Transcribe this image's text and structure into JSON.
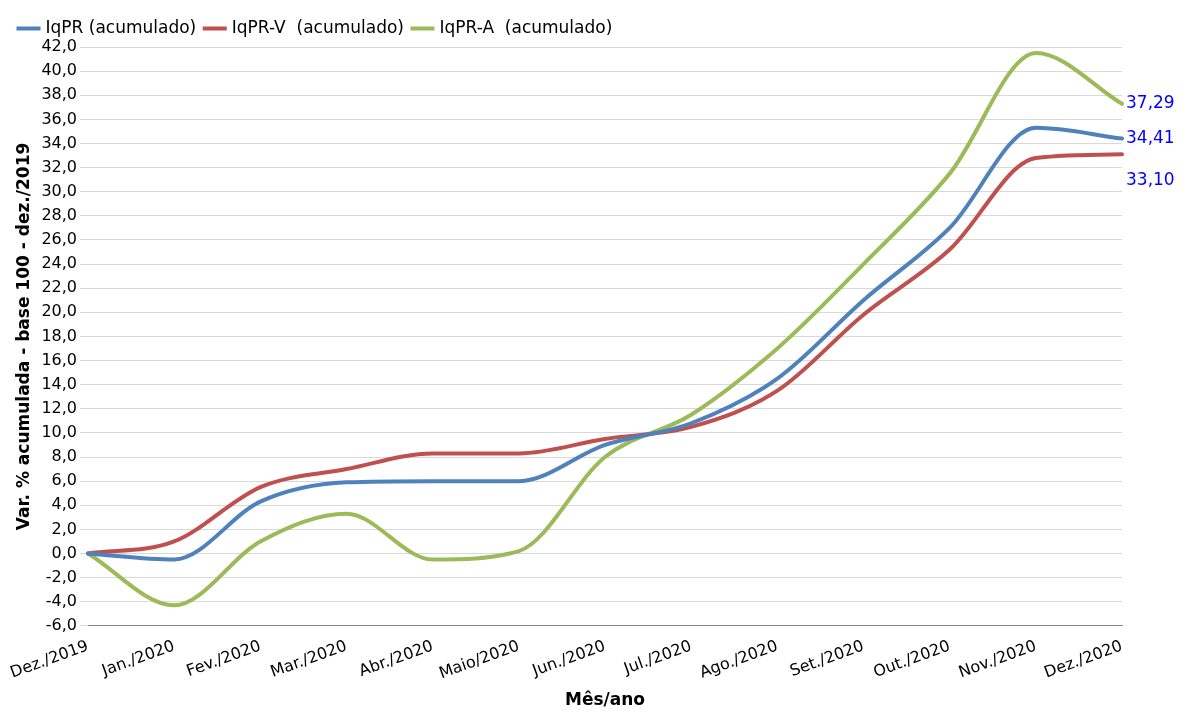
{
  "chart_data": {
    "type": "line",
    "xlabel": "Mês/ano",
    "ylabel": "Var. % acumulada - base 100 - dez./2019",
    "categories": [
      "Dez./2019",
      "Jan./2020",
      "Fev./2020",
      "Mar./2020",
      "Abr./2020",
      "Maio/2020",
      "Jun./2020",
      "Jul./2020",
      "Ago./2020",
      "Set./2020",
      "Out./2020",
      "Nov./2020",
      "Dez./2020"
    ],
    "series": [
      {
        "name": "IqPR (acumulado)",
        "color": "#4f81bd",
        "values": [
          0,
          -0.5,
          4.3,
          5.9,
          6.0,
          6.0,
          9.0,
          10.8,
          14.5,
          21.0,
          27.0,
          35.3,
          34.41
        ],
        "value_labels": [
          null,
          null,
          null,
          null,
          null,
          null,
          null,
          null,
          null,
          null,
          null,
          null,
          "34,41"
        ]
      },
      {
        "name": "IqPR-V  (acumulado)",
        "color": "#c0504d",
        "values": [
          0,
          1.0,
          5.5,
          7.0,
          8.3,
          8.3,
          9.5,
          10.5,
          13.5,
          19.8,
          25.2,
          32.8,
          33.1
        ],
        "value_labels": [
          null,
          null,
          null,
          null,
          null,
          null,
          null,
          null,
          null,
          null,
          null,
          null,
          "33,10"
        ]
      },
      {
        "name": "IqPR-A  (acumulado)",
        "color": "#9bbb59",
        "values": [
          0,
          -4.3,
          1.0,
          3.3,
          -0.5,
          0.2,
          8.0,
          11.5,
          17.0,
          24.0,
          31.5,
          41.5,
          37.29
        ],
        "value_labels": [
          null,
          null,
          null,
          null,
          null,
          null,
          null,
          null,
          null,
          null,
          null,
          null,
          "37,29"
        ]
      }
    ],
    "ylim": [
      -6,
      42
    ],
    "yticks": [
      {
        "value": -6,
        "label": "-6,0"
      },
      {
        "value": -4,
        "label": "-4,0"
      },
      {
        "value": -2,
        "label": "-2,0"
      },
      {
        "value": 0,
        "label": "0,0"
      },
      {
        "value": 2,
        "label": "2,0"
      },
      {
        "value": 4,
        "label": "4,0"
      },
      {
        "value": 6,
        "label": "6,0"
      },
      {
        "value": 8,
        "label": "8,0"
      },
      {
        "value": 10,
        "label": "10,0"
      },
      {
        "value": 12,
        "label": "12,0"
      },
      {
        "value": 14,
        "label": "14,0"
      },
      {
        "value": 16,
        "label": "16,0"
      },
      {
        "value": 18,
        "label": "18,0"
      },
      {
        "value": 20,
        "label": "20,0"
      },
      {
        "value": 22,
        "label": "22,0"
      },
      {
        "value": 24,
        "label": "24,0"
      },
      {
        "value": 26,
        "label": "26,0"
      },
      {
        "value": 28,
        "label": "28,0"
      },
      {
        "value": 30,
        "label": "30,0"
      },
      {
        "value": 32,
        "label": "32,0"
      },
      {
        "value": 34,
        "label": "34,0"
      },
      {
        "value": 36,
        "label": "36,0"
      },
      {
        "value": 38,
        "label": "38,0"
      },
      {
        "value": 40,
        "label": "40,0"
      },
      {
        "value": 42,
        "label": "42,0"
      }
    ],
    "grid": "y",
    "legend": "top left",
    "marker": "none",
    "line_style": "solid"
  }
}
